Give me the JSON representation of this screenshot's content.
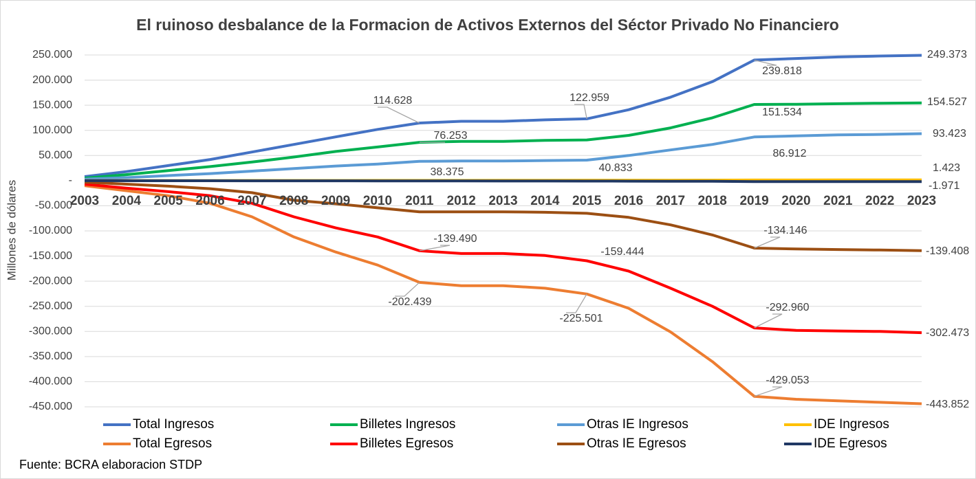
{
  "chart_data": {
    "type": "line",
    "title": "El ruinoso desbalance de la Formacion de Activos Externos del Séctor Privado No Financiero",
    "y_label": "Millones de dólares",
    "source": "Fuente: BCRA elaboracion STDP",
    "categories": [
      "2003",
      "2004",
      "2005",
      "2006",
      "2007",
      "2008",
      "2009",
      "2010",
      "2011",
      "2012",
      "2013",
      "2014",
      "2015",
      "2016",
      "2017",
      "2018",
      "2019",
      "2020",
      "2021",
      "2022",
      "2023"
    ],
    "ylim": [
      -450000,
      250000
    ],
    "yticks": [
      {
        "value": 250000,
        "label": "250.000"
      },
      {
        "value": 200000,
        "label": "200.000"
      },
      {
        "value": 150000,
        "label": "150.000"
      },
      {
        "value": 100000,
        "label": "100.000"
      },
      {
        "value": 50000,
        "label": "50.000"
      },
      {
        "value": 0,
        "label": "-"
      },
      {
        "value": -50000,
        "label": "-50.000"
      },
      {
        "value": -100000,
        "label": "-100.000"
      },
      {
        "value": -150000,
        "label": "-150.000"
      },
      {
        "value": -200000,
        "label": "-200.000"
      },
      {
        "value": -250000,
        "label": "-250.000"
      },
      {
        "value": -300000,
        "label": "-300.000"
      },
      {
        "value": -350000,
        "label": "-350.000"
      },
      {
        "value": -400000,
        "label": "-400.000"
      },
      {
        "value": -450000,
        "label": "-450.000"
      }
    ],
    "grid": true,
    "legend": "bottom",
    "series": [
      {
        "name": "Total Ingresos",
        "color": "#4472c4",
        "values": [
          8000,
          18000,
          30000,
          42000,
          57000,
          72000,
          87000,
          102000,
          114628,
          118000,
          118000,
          121000,
          122959,
          141000,
          166000,
          197000,
          239818,
          243000,
          246000,
          248000,
          249373
        ],
        "value_labels": [
          null,
          null,
          null,
          null,
          null,
          null,
          null,
          null,
          "114.628",
          null,
          null,
          null,
          "122.959",
          null,
          null,
          null,
          "239.818",
          null,
          null,
          null,
          "249.373"
        ]
      },
      {
        "name": "Billetes Ingresos",
        "color": "#00b050",
        "values": [
          5000,
          12000,
          20000,
          28000,
          37000,
          47000,
          58000,
          67000,
          76253,
          78000,
          78000,
          80000,
          81000,
          90000,
          105000,
          125000,
          151534,
          152000,
          153000,
          154000,
          154527
        ],
        "value_labels": [
          null,
          null,
          null,
          null,
          null,
          null,
          null,
          null,
          "76.253",
          null,
          null,
          null,
          null,
          null,
          null,
          null,
          "151.534",
          null,
          null,
          null,
          "154.527"
        ]
      },
      {
        "name": "Otras IE Ingresos",
        "color": "#5b9bd5",
        "values": [
          3000,
          6000,
          10000,
          14000,
          19000,
          24000,
          29000,
          33000,
          38375,
          39000,
          39000,
          40000,
          40833,
          50000,
          61000,
          72000,
          86912,
          89000,
          91000,
          92000,
          93423
        ],
        "value_labels": [
          null,
          null,
          null,
          null,
          null,
          null,
          null,
          null,
          "38.375",
          null,
          null,
          null,
          "40.833",
          null,
          null,
          null,
          "86.912",
          null,
          null,
          null,
          "93.423"
        ]
      },
      {
        "name": "IDE Ingresos",
        "color": "#ffc000",
        "values": [
          100,
          150,
          200,
          250,
          300,
          350,
          400,
          450,
          500,
          550,
          600,
          650,
          700,
          800,
          900,
          1000,
          1300,
          1350,
          1380,
          1400,
          1423
        ],
        "value_labels": [
          null,
          null,
          null,
          null,
          null,
          null,
          null,
          null,
          null,
          null,
          null,
          null,
          null,
          null,
          null,
          null,
          null,
          null,
          null,
          null,
          "1.423"
        ]
      },
      {
        "name": "Total Egresos",
        "color": "#ed7d31",
        "values": [
          -10000,
          -20000,
          -30000,
          -45000,
          -72000,
          -112000,
          -142000,
          -168000,
          -202439,
          -209000,
          -209000,
          -214000,
          -225501,
          -254000,
          -301000,
          -360000,
          -429053,
          -435000,
          -438000,
          -441000,
          -443852
        ],
        "value_labels": [
          null,
          null,
          null,
          null,
          null,
          null,
          null,
          null,
          "-202.439",
          null,
          null,
          null,
          "-225.501",
          null,
          null,
          null,
          "-429.053",
          null,
          null,
          null,
          "-443.852"
        ]
      },
      {
        "name": "Billetes Egresos",
        "color": "#ff0000",
        "values": [
          -7000,
          -15000,
          -22000,
          -30000,
          -45000,
          -72000,
          -94000,
          -112000,
          -139490,
          -145000,
          -145000,
          -149000,
          -159444,
          -180000,
          -214000,
          -250000,
          -292960,
          -298000,
          -299000,
          -300000,
          -302473
        ],
        "value_labels": [
          null,
          null,
          null,
          null,
          null,
          null,
          null,
          null,
          "-139.490",
          null,
          null,
          null,
          "-159.444",
          null,
          null,
          null,
          "-292.960",
          null,
          null,
          null,
          "-302.473"
        ]
      },
      {
        "name": "Otras IE Egresos",
        "color": "#9c4f13",
        "values": [
          -3000,
          -7000,
          -11000,
          -16000,
          -24000,
          -39000,
          -46000,
          -54000,
          -62000,
          -62000,
          -62000,
          -63000,
          -65000,
          -73000,
          -88000,
          -108000,
          -134146,
          -136000,
          -137000,
          -138000,
          -139408
        ],
        "value_labels": [
          null,
          null,
          null,
          null,
          null,
          null,
          null,
          null,
          null,
          null,
          null,
          null,
          null,
          null,
          null,
          null,
          "-134.146",
          null,
          null,
          null,
          "-139.408"
        ]
      },
      {
        "name": "IDE Egresos",
        "color": "#203864",
        "values": [
          -100,
          -150,
          -200,
          -250,
          -300,
          -350,
          -400,
          -450,
          -500,
          -600,
          -700,
          -800,
          -900,
          -1000,
          -1100,
          -1200,
          -1800,
          -1850,
          -1900,
          -1950,
          -1971
        ],
        "value_labels": [
          null,
          null,
          null,
          null,
          null,
          null,
          null,
          null,
          null,
          null,
          null,
          null,
          null,
          null,
          null,
          null,
          null,
          null,
          null,
          null,
          "-1.971"
        ]
      }
    ]
  }
}
